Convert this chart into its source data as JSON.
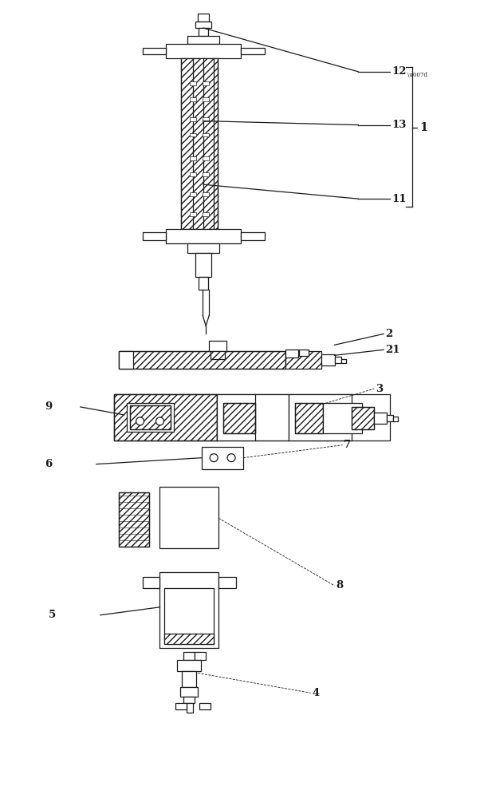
{
  "bg_color": "#ffffff",
  "line_color": "#1a1a1a",
  "fig_width": 6.12,
  "fig_height": 10.0
}
